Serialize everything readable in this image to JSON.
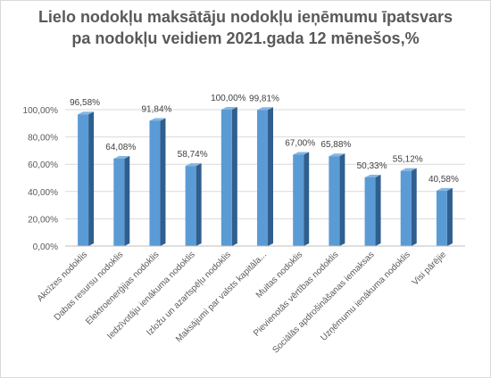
{
  "title_lines": [
    "Lielo nodokļu maksātāju nodokļu ieņēmumu īpatsvars",
    "pa nodokļu veidiem 2021.gada 12 mēnešos,%"
  ],
  "colors": {
    "bar_front": "#5b9bd5",
    "bar_side": "#2f5f8f",
    "bar_top": "#86b5e3",
    "grid": "#d9d9d9",
    "text": "#595959",
    "title": "#595959"
  },
  "chart_data": {
    "type": "bar",
    "title": "Lielo nodokļu maksātāju nodokļu ieņēmumu īpatsvars pa nodokļu veidiem 2021.gada 12 mēnešos,%",
    "categories": [
      "Akcīzes nodoklis",
      "Dabas resursu nodoklis",
      "Elektroenerģijas nodoklis",
      "Iedzīvotāju ienākuma nodoklis",
      "Izložu un azartspēļu nodoklis",
      "Maksājumi par valsts kapitāla...",
      "Muitas nodoklis",
      "Pievienotās vērtības nodoklis",
      "Sociālās apdrošināšanas iemaksas",
      "Uzņēmumu ienākuma nodoklis",
      "Visi pārējie"
    ],
    "values": [
      96.58,
      64.08,
      91.84,
      58.74,
      100.0,
      99.81,
      67.0,
      65.88,
      50.33,
      55.12,
      40.58
    ],
    "data_labels": [
      "96,58%",
      "64,08%",
      "91,84%",
      "58,74%",
      "100,00%",
      "99,81%",
      "67,00%",
      "65,88%",
      "50,33%",
      "55,12%",
      "40,58%"
    ],
    "y_ticks": [
      0,
      20,
      40,
      60,
      80,
      100
    ],
    "y_tick_labels": [
      "0,00%",
      "20,00%",
      "40,00%",
      "60,00%",
      "80,00%",
      "100,00%"
    ],
    "ylim": [
      0,
      100
    ],
    "grid": true,
    "legend": "none",
    "xlabel": "",
    "ylabel": ""
  }
}
